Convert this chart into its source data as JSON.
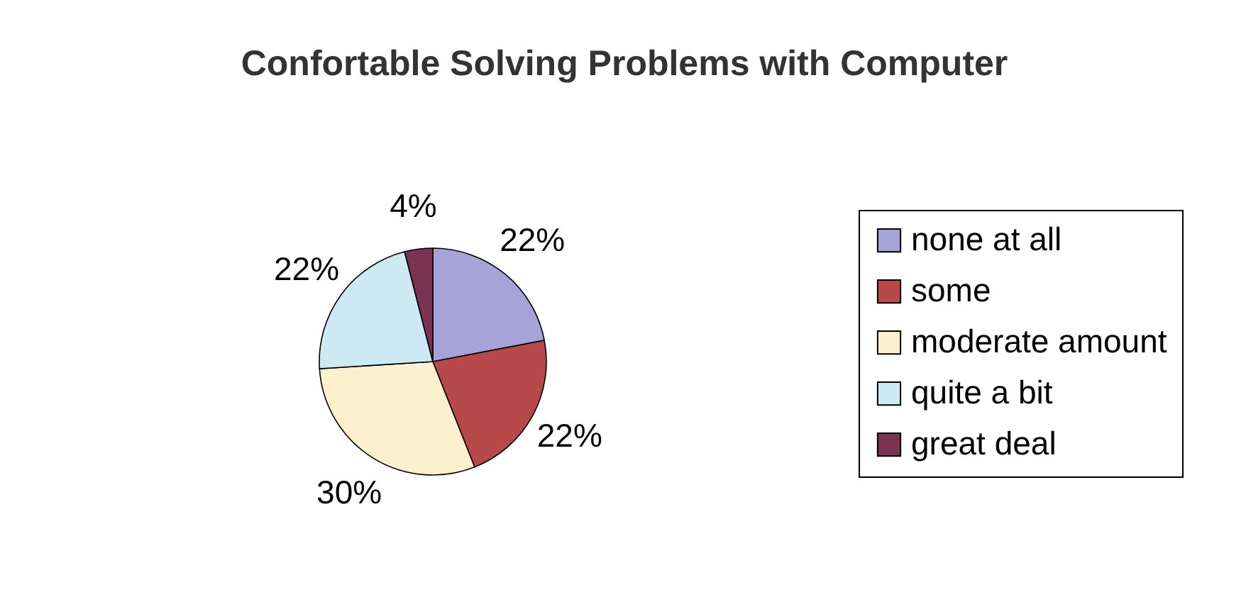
{
  "chart_data": {
    "type": "pie",
    "title": "Confortable Solving Problems with Computer",
    "categories": [
      "none at all",
      "some",
      "moderate amount",
      "quite a bit",
      "great deal"
    ],
    "values": [
      22,
      22,
      30,
      22,
      4
    ],
    "value_labels": [
      "22%",
      "22%",
      "30%",
      "22%",
      "4%"
    ],
    "colors": [
      "#a7a3d8",
      "#b8494b",
      "#fdf0cf",
      "#cde9f4",
      "#7b3352"
    ],
    "legend": "right"
  }
}
